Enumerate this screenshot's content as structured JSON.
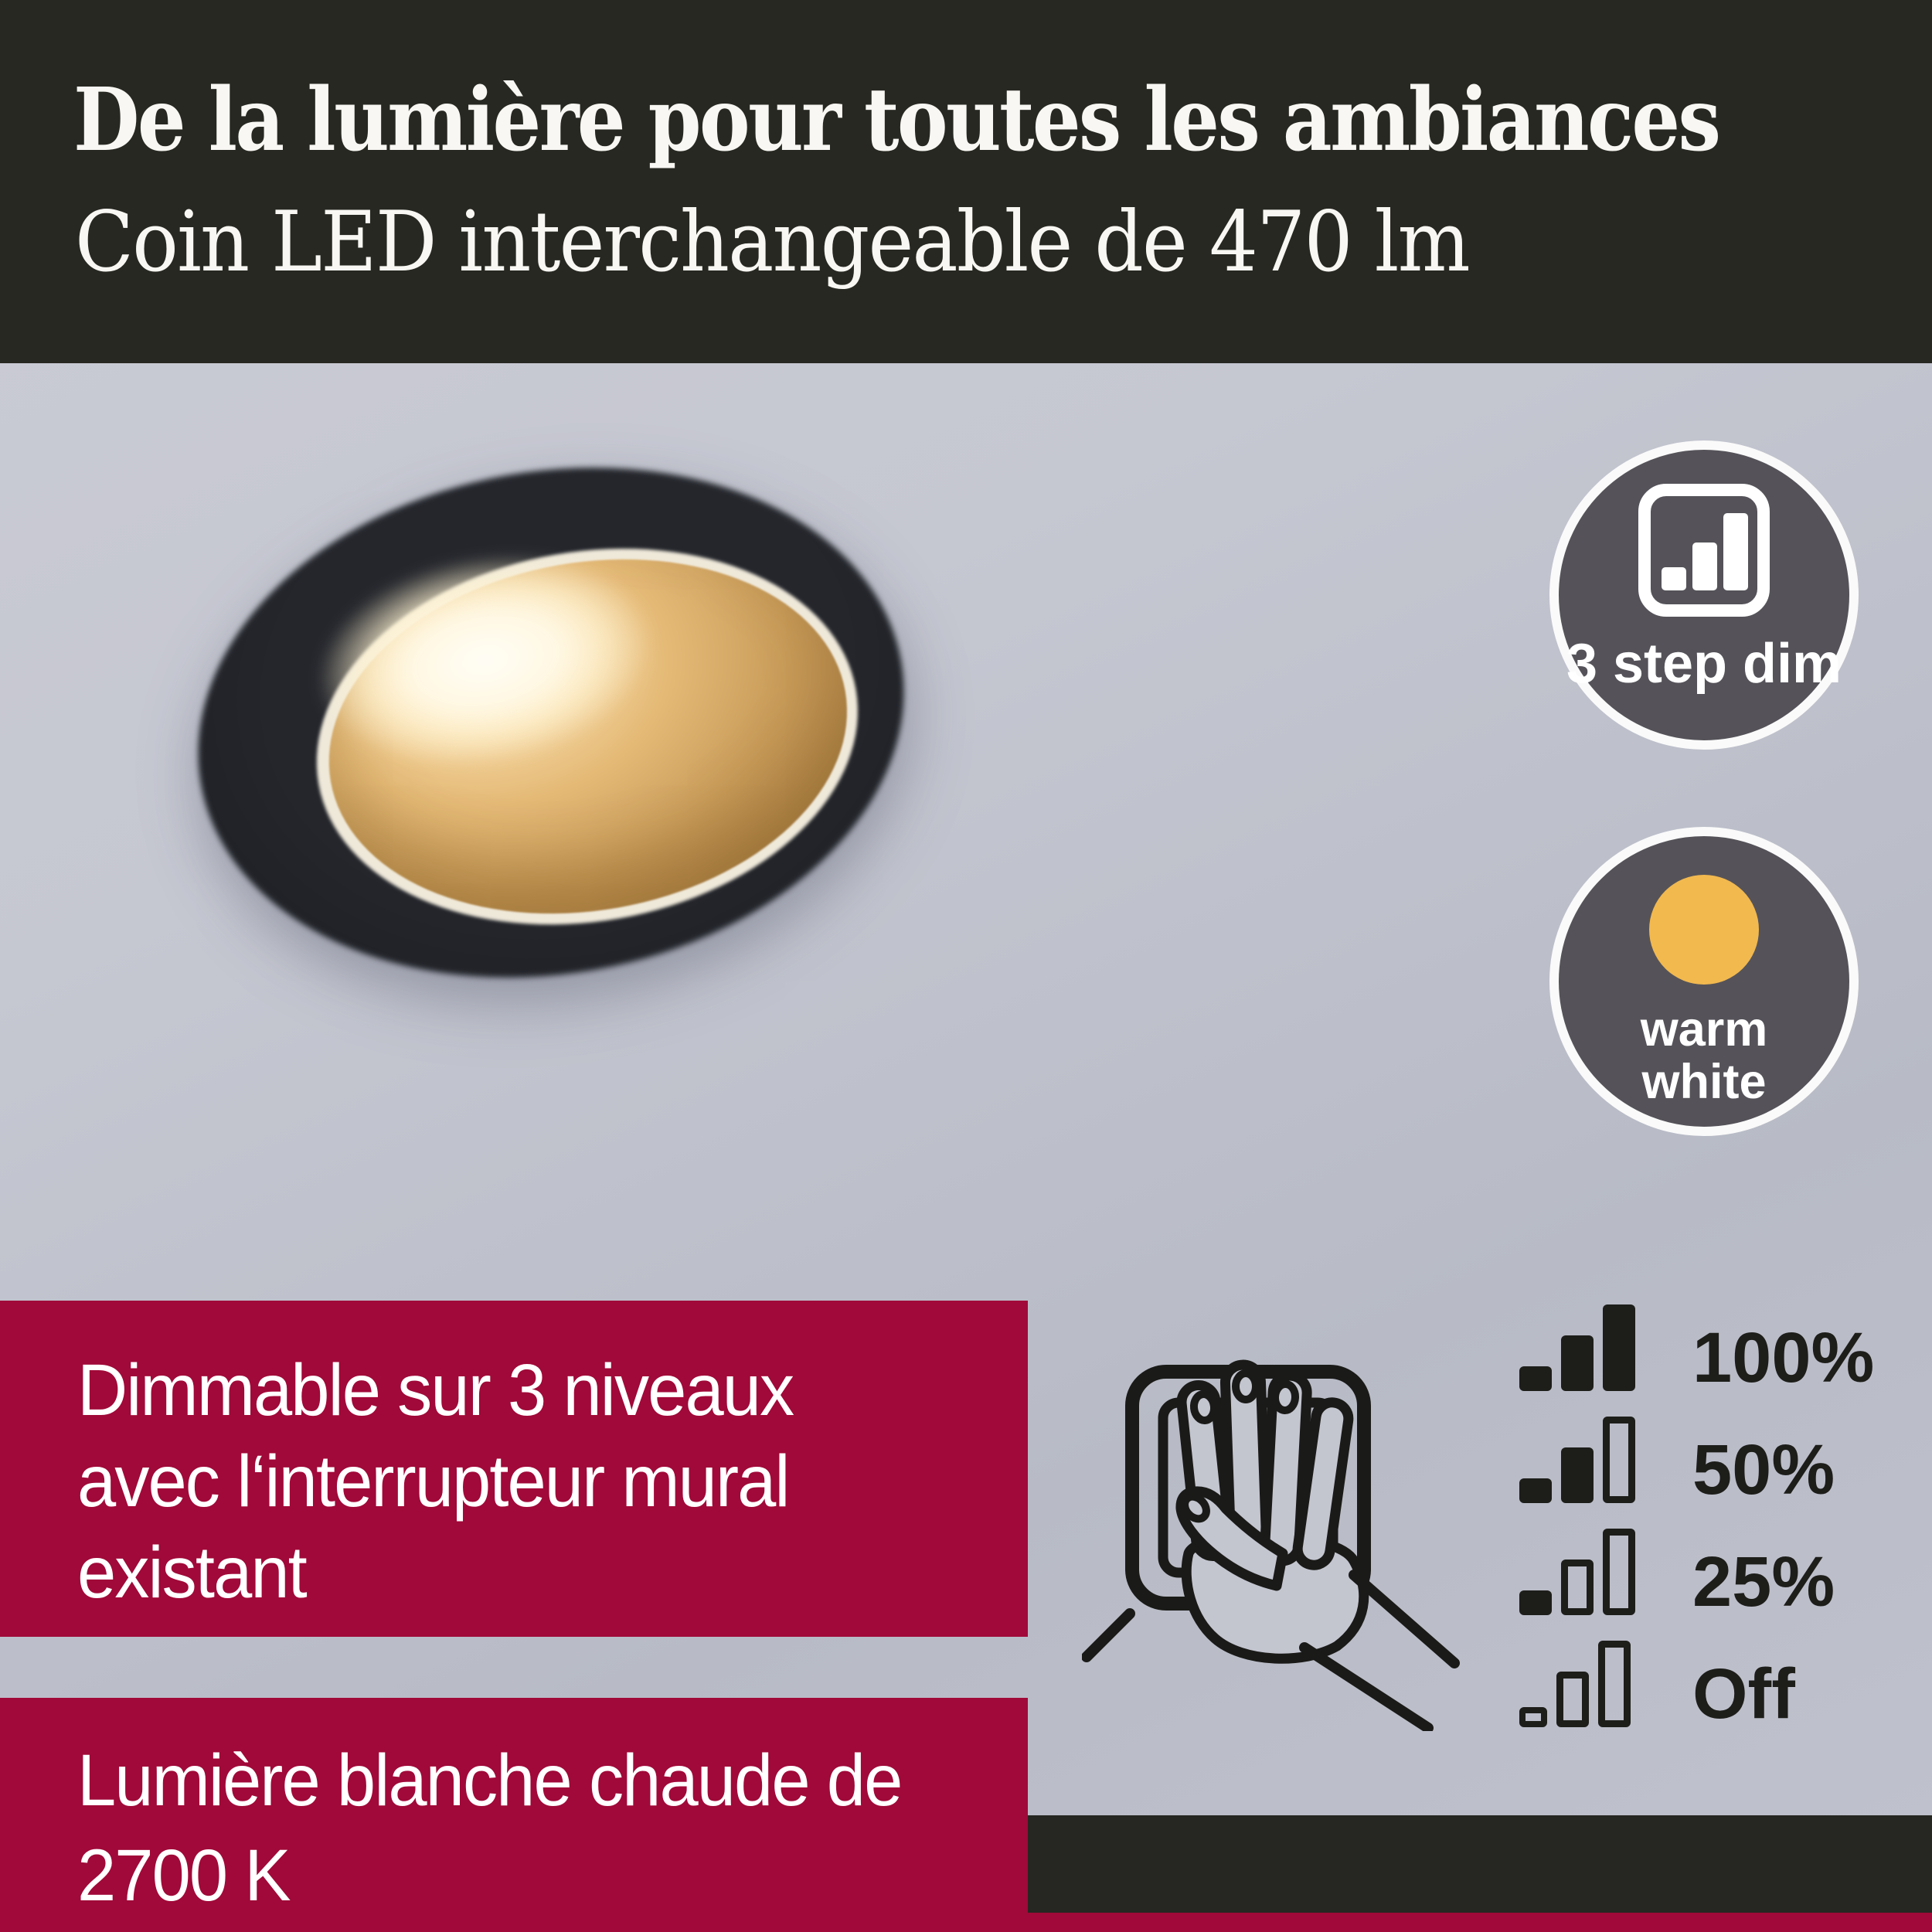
{
  "header": {
    "title": "De la lumière pour toutes les ambiances",
    "subtitle": "Coin LED interchangeable de 470 lm"
  },
  "badges": {
    "step_dim": {
      "label": "3 step dim",
      "icon": "dim-steps-icon"
    },
    "warm_white": {
      "line1": "warm",
      "line2": "white",
      "swatch_color": "#f2b94f"
    }
  },
  "features": [
    {
      "lines": [
        "Dimmable sur 3 niveaux",
        "avec l‘interrupteur mural",
        "existant"
      ]
    },
    {
      "lines": [
        "Lumière blanche chaude de",
        "2700 K"
      ]
    }
  ],
  "dim_levels": [
    {
      "label": "100%",
      "bars": [
        "filled",
        "filled",
        "filled"
      ]
    },
    {
      "label": "50%",
      "bars": [
        "filled",
        "filled",
        "outline"
      ]
    },
    {
      "label": "25%",
      "bars": [
        "filled",
        "outline",
        "outline"
      ]
    },
    {
      "label": "Off",
      "bars": [
        "outline-tiny",
        "outline",
        "outline"
      ]
    }
  ],
  "colors": {
    "bg": "#c3c5cf",
    "header-dark": "#282822",
    "red": "#a00939",
    "badge-gray": "#555359",
    "warm-yellow": "#f2b94f",
    "dark": "#1d1d1a",
    "text-light": "#f8f7f3"
  }
}
